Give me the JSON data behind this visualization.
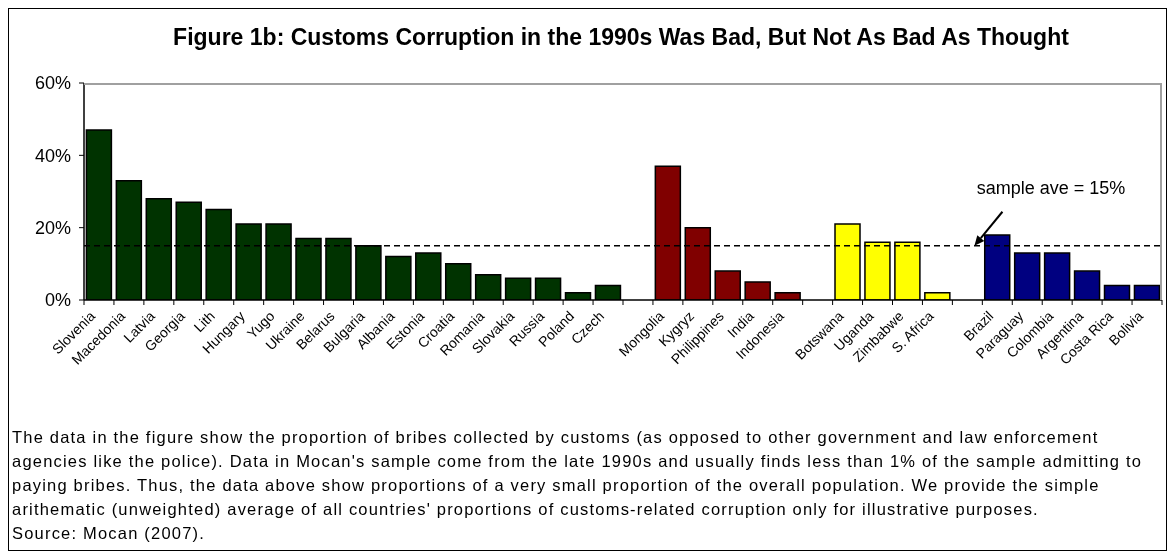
{
  "chart_data": {
    "type": "bar",
    "title": "Figure 1b: Customs Corruption in the 1990s Was Bad, But Not As Bad As Thought",
    "categories": [
      "Slovenia",
      "Macedonia",
      "Latvia",
      "Georgia",
      "Lith",
      "Hungary",
      "Yugo",
      "Ukraine",
      "Belarus",
      "Bulgaria",
      "Albania",
      "Estonia",
      "Croatia",
      "Romania",
      "Slovakia",
      "Russia",
      "Poland",
      "Czech",
      null,
      "Mongolia",
      "Kygryz",
      "Philippines",
      "India",
      "Indonesia",
      null,
      "Botswana",
      "Uganda",
      "Zimbabwe",
      "S. Africa",
      null,
      "Brazil",
      "Paraguay",
      "Colombia",
      "Argentina",
      "Costa Rica",
      "Bolivia"
    ],
    "values": [
      47,
      33,
      28,
      27,
      25,
      21,
      21,
      17,
      17,
      15,
      12,
      13,
      10,
      7,
      6,
      6,
      2,
      4,
      null,
      37,
      20,
      8,
      5,
      2,
      null,
      21,
      16,
      16,
      2,
      null,
      18,
      13,
      13,
      8,
      4,
      4
    ],
    "colors": [
      "#003300",
      "#003300",
      "#003300",
      "#003300",
      "#003300",
      "#003300",
      "#003300",
      "#003300",
      "#003300",
      "#003300",
      "#003300",
      "#003300",
      "#003300",
      "#003300",
      "#003300",
      "#003300",
      "#003300",
      "#003300",
      null,
      "#800000",
      "#800000",
      "#800000",
      "#800000",
      "#800000",
      null,
      "#ffff00",
      "#ffff00",
      "#ffff00",
      "#ffff00",
      null,
      "#000080",
      "#000080",
      "#000080",
      "#000080",
      "#000080",
      "#000080"
    ],
    "ylim": [
      0,
      60
    ],
    "yticks": [
      {
        "value": 0,
        "label": "0%"
      },
      {
        "value": 20,
        "label": "20%"
      },
      {
        "value": 40,
        "label": "40%"
      },
      {
        "value": 60,
        "label": "60%"
      }
    ],
    "ref_lines": [
      {
        "axis": "y",
        "value": 15,
        "label": "sample ave = 15%",
        "color": "#000000",
        "line_style": "dashed"
      }
    ],
    "annotations": [
      "The data in the figure show the proportion of bribes collected by customs (as opposed to other government and law enforcement agencies like the police). Data in Mocan's sample come from the late 1990s and usually finds less than 1% of the sample admitting to paying bribes. Thus, the data above show proportions of a very small proportion of the overall population. We provide the simple arithematic (unweighted) average of all countries' proportions of customs-related corruption only for illustrative purposes.",
      "Source: Mocan (2007)."
    ]
  }
}
